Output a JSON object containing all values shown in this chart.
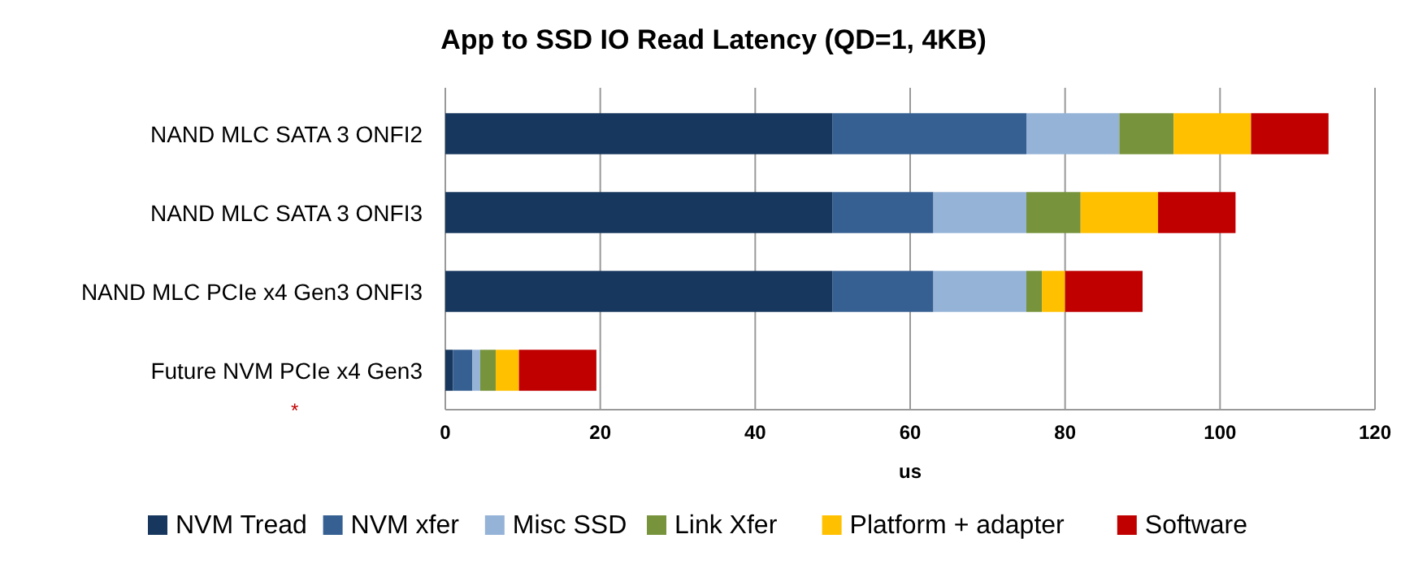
{
  "chart_data": {
    "type": "bar",
    "orientation": "horizontal",
    "stacked": true,
    "title": "App to SSD IO Read  Latency (QD=1, 4KB)",
    "xlabel": "us",
    "categories": [
      "NAND MLC SATA 3  ONFI2",
      "NAND MLC SATA 3 ONFI3",
      "NAND MLC PCIe x4 Gen3 ONFI3",
      "Future NVM PCIe x4 Gen3"
    ],
    "series": [
      {
        "name": "NVM Tread",
        "color": "#17375e",
        "values": [
          50,
          50,
          50,
          1
        ]
      },
      {
        "name": "NVM xfer",
        "color": "#366092",
        "values": [
          25,
          13,
          13,
          2.5
        ]
      },
      {
        "name": "Misc SSD",
        "color": "#95b3d7",
        "values": [
          12,
          12,
          12,
          1
        ]
      },
      {
        "name": "Link Xfer",
        "color": "#77933c",
        "values": [
          7,
          7,
          2,
          2
        ]
      },
      {
        "name": "Platform + adapter",
        "color": "#ffc000",
        "values": [
          10,
          10,
          3,
          3
        ]
      },
      {
        "name": "Software",
        "color": "#c00000",
        "values": [
          10,
          10,
          10,
          10
        ]
      }
    ],
    "xlim": [
      0,
      120
    ],
    "xticks": [
      0,
      20,
      40,
      60,
      80,
      100,
      120
    ],
    "grid": "x",
    "legend": "bottom",
    "annotations": [
      "*"
    ]
  }
}
